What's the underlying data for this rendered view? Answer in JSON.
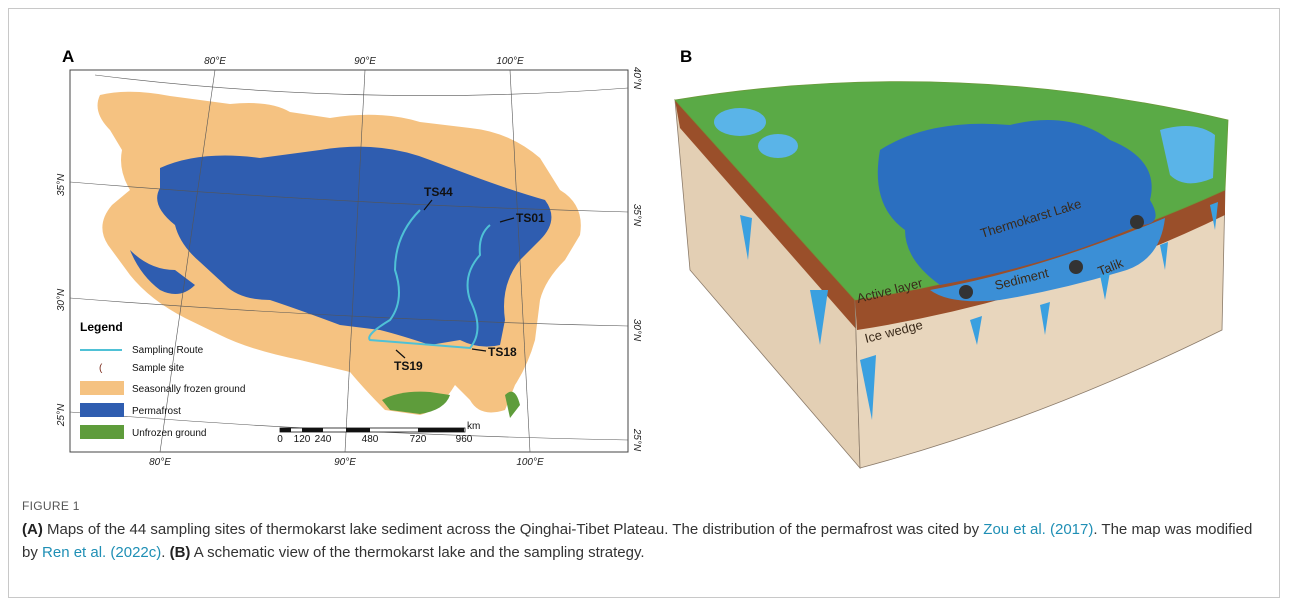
{
  "panel_a": {
    "label": "A",
    "lon_top": [
      "80°E",
      "90°E",
      "100°E"
    ],
    "lon_bottom": [
      "80°E",
      "90°E",
      "100°E"
    ],
    "lat_left": [
      "35°N",
      "30°N",
      "25°N"
    ],
    "lat_right": [
      "40°N",
      "35°N",
      "30°N",
      "25°N"
    ],
    "sites": [
      "TS44",
      "TS01",
      "TS19",
      "TS18"
    ],
    "legend": {
      "title": "Legend",
      "items": [
        "Sampling Route",
        "Sample site",
        "Seasonally frozen ground",
        "Permafrost",
        "Unfrozen ground"
      ]
    },
    "scale_bar": {
      "ticks": [
        "0",
        "120",
        "240",
        "480",
        "720",
        "960"
      ],
      "unit": "km"
    }
  },
  "panel_b": {
    "label": "B",
    "labels": [
      "Thermokarst Lake",
      "Active layer",
      "Ice wedge",
      "Sediment",
      "Talik"
    ]
  },
  "caption": {
    "figure_label": "FIGURE 1",
    "segments": [
      "(A)",
      " Maps of the 44 sampling sites of thermokarst lake sediment across the Qinghai-Tibet Plateau. The distribution of the permafrost was cited by ",
      "Zou et al. (2017)",
      ". The map was modified by ",
      "Ren et al. (2022c)",
      ". ",
      "(B)",
      " A schematic view of the thermokarst lake and the sampling strategy."
    ]
  }
}
